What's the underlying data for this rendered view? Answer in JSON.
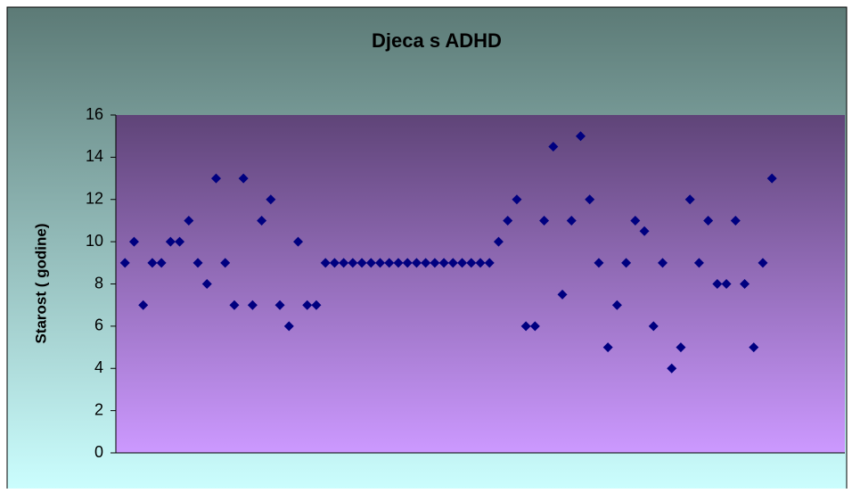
{
  "chart_data": {
    "type": "scatter",
    "title": "Djeca s ADHD",
    "y_label": "Starost ( godine)",
    "x": [
      1,
      2,
      3,
      4,
      5,
      6,
      7,
      8,
      9,
      10,
      11,
      12,
      13,
      14,
      15,
      16,
      17,
      18,
      19,
      20,
      21,
      22,
      23,
      24,
      25,
      26,
      27,
      28,
      29,
      30,
      31,
      32,
      33,
      34,
      35,
      36,
      37,
      38,
      39,
      40,
      41,
      42,
      43,
      44,
      45,
      46,
      47,
      48,
      49,
      50,
      51,
      52,
      53,
      54,
      55,
      56,
      57,
      58,
      59,
      60,
      61,
      62,
      63,
      64,
      65,
      66,
      67,
      68,
      69,
      70,
      71,
      72
    ],
    "values": [
      9,
      10,
      7,
      9,
      9,
      10,
      10,
      11,
      9,
      8,
      13,
      9,
      7,
      13,
      7,
      11,
      12,
      7,
      6,
      10,
      7,
      7,
      9,
      9,
      9,
      9,
      9,
      9,
      9,
      9,
      9,
      9,
      9,
      9,
      9,
      9,
      9,
      9,
      9,
      9,
      9,
      10,
      11,
      12,
      6,
      6,
      11,
      14.5,
      7.5,
      11,
      15,
      12,
      9,
      5,
      7,
      9,
      11,
      10.5,
      6,
      9,
      4,
      5,
      12,
      9,
      11,
      8,
      8,
      11,
      8,
      5,
      9,
      13
    ],
    "color": "#000080",
    "xlim": [
      0,
      80
    ],
    "ylim": [
      0,
      16
    ],
    "yticks": [
      0,
      2,
      4,
      6,
      8,
      10,
      12,
      14,
      16
    ],
    "grid": false
  }
}
